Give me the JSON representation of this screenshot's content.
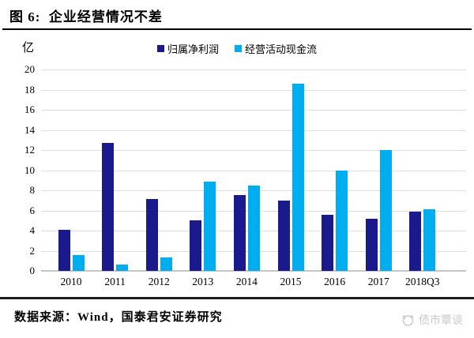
{
  "header": {
    "title": "图 6:  企业经营情况不差"
  },
  "chart_data": {
    "type": "bar",
    "title": "企业经营情况不差",
    "unit_label": "亿",
    "categories": [
      "2010",
      "2011",
      "2012",
      "2013",
      "2014",
      "2015",
      "2016",
      "2017",
      "2018Q3"
    ],
    "series": [
      {
        "name": "归属净利润",
        "color": "#1A1A8C",
        "values": [
          4.1,
          12.7,
          7.1,
          5.0,
          7.5,
          7.0,
          5.6,
          5.2,
          5.9
        ]
      },
      {
        "name": "经营活动现金流",
        "color": "#00AEEF",
        "values": [
          1.6,
          0.6,
          1.3,
          8.9,
          8.5,
          18.6,
          10.0,
          12.0,
          6.1
        ]
      }
    ],
    "ylim": [
      0,
      20
    ],
    "ytick_step": 2,
    "grid": true,
    "legend_position": "top-center",
    "gridline_color": "#dedede",
    "axis_color": "#c6c6c6"
  },
  "footer": {
    "source": "数据来源：Wind，国泰君安证券研究",
    "watermark": "债市覃谈"
  }
}
